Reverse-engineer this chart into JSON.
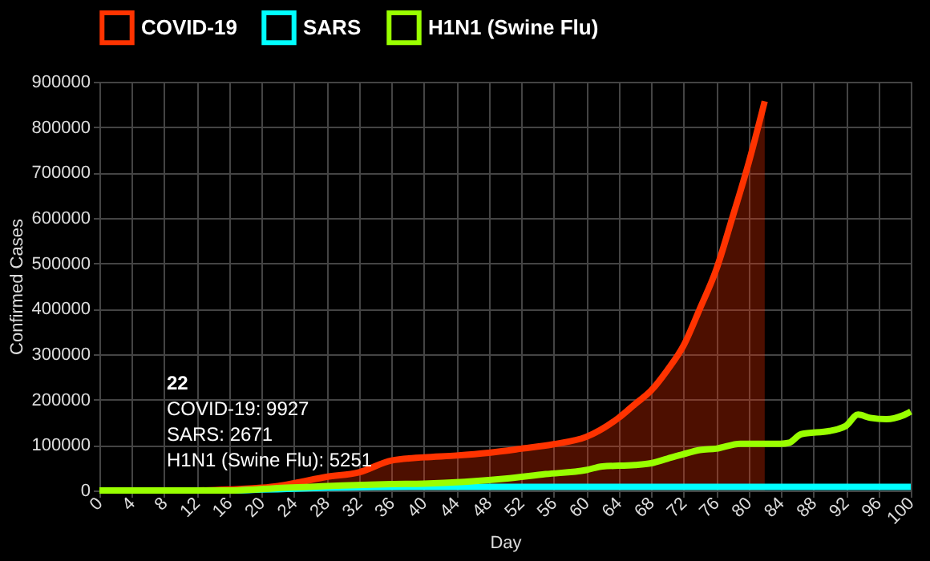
{
  "chart_data": {
    "type": "line",
    "xlabel": "Day",
    "ylabel": "Confirmed Cases",
    "xlim": [
      0,
      100
    ],
    "xticks": [
      0,
      4,
      8,
      12,
      16,
      20,
      24,
      28,
      32,
      36,
      40,
      44,
      48,
      52,
      56,
      60,
      64,
      68,
      72,
      76,
      80,
      84,
      88,
      92,
      96,
      100
    ],
    "ylim": [
      0,
      900000
    ],
    "yticks": [
      0,
      100000,
      200000,
      300000,
      400000,
      500000,
      600000,
      700000,
      800000,
      900000
    ],
    "grid": true,
    "legend": "top",
    "annotations": [
      "22",
      "COVID-19: 9927",
      "SARS: 2671",
      "H1N1 (Swine Flu): 5251"
    ],
    "series": [
      {
        "name": "COVID-19",
        "type": "area",
        "color": "#ff3300",
        "x": [
          0,
          4,
          8,
          12,
          16,
          20,
          22,
          24,
          28,
          32,
          36,
          40,
          44,
          48,
          52,
          56,
          60,
          64,
          66,
          68,
          70,
          72,
          74,
          76,
          78,
          80,
          82
        ],
        "values": [
          0,
          0,
          0,
          0,
          2000,
          6000,
          9927,
          16000,
          30000,
          40000,
          66000,
          73000,
          77000,
          83000,
          92000,
          102000,
          118000,
          160000,
          190000,
          220000,
          265000,
          319000,
          400000,
          485000,
          600000,
          720000,
          857000
        ]
      },
      {
        "name": "SARS",
        "color": "#00ffff",
        "x": [
          0,
          16,
          20,
          22,
          24,
          28,
          32,
          40,
          50,
          100
        ],
        "values": [
          0,
          0,
          2000,
          2671,
          4000,
          6000,
          7000,
          8000,
          8000,
          8000
        ]
      },
      {
        "name": "H1N1 (Swine Flu)",
        "color": "#99ff00",
        "x": [
          0,
          16,
          20,
          22,
          26,
          30,
          36,
          40,
          45,
          50,
          55,
          60,
          62,
          66,
          68,
          70,
          72,
          74,
          76,
          79,
          84,
          85,
          86.5,
          90,
          91,
          92,
          93.5,
          95,
          97,
          99,
          100
        ],
        "values": [
          0,
          0,
          3000,
          5251,
          8000,
          11000,
          14000,
          15000,
          19000,
          26000,
          36000,
          45000,
          53000,
          56000,
          60000,
          70000,
          80000,
          89000,
          92000,
          103000,
          103000,
          105000,
          124000,
          131000,
          135000,
          142000,
          167000,
          160000,
          157000,
          165000,
          174000
        ]
      }
    ]
  }
}
